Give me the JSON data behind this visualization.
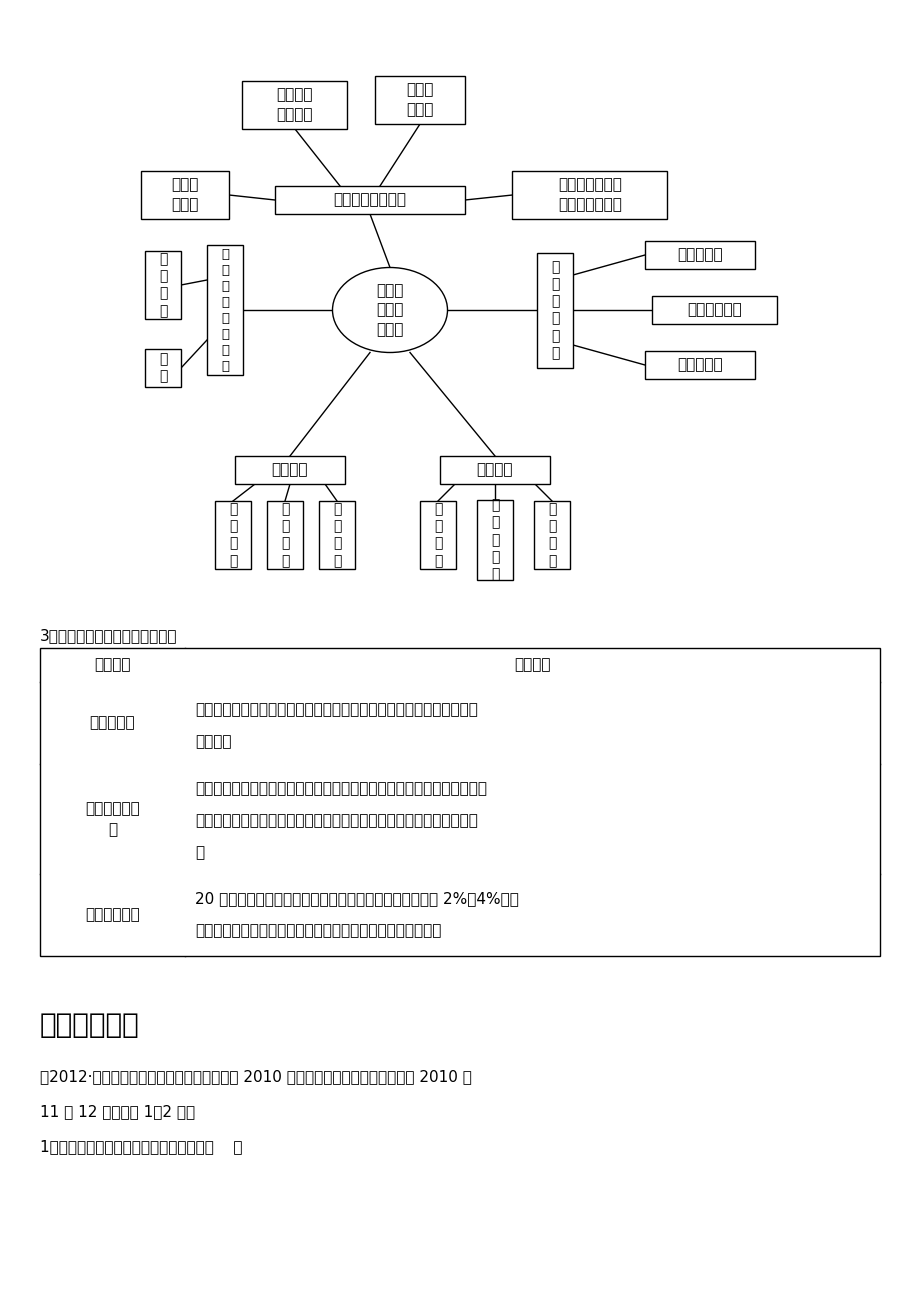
{
  "bg_color": "#ffffff",
  "text_color": "#000000",
  "section3_title": "3．全球气候变暖带来的深刻影响",
  "table_headers": [
    "影响内容",
    "具体表现"
  ],
  "table_row1_left": "海平面上升",
  "table_row1_right1": "改变海岸线，给沿海地区带来巨大影响，海拔较低的沿海地区面临被淹",
  "table_row1_right2": "没的危险",
  "table_row2_left": "资源条件的变\n化",
  "table_row2_right1": "温度和降水的变化，意味着热量资源和水资源条件的变化，并改变了水、",
  "table_row2_right2": "热资源的空间分布格局，在许多地区增加了人类开发利用自然资源的难",
  "table_row2_right3": "度",
  "table_row3_left": "自然灾害加剧",
  "table_row3_right1": "20 世纪后半叶，北半球中高纬地区的暴雨发生频率增加了 2%～4%，而",
  "table_row3_right2": "亚洲和非洲的一些地区，最近数十年干旱频率增加、强度增强",
  "section4_title": "四、堂内练习",
  "section4_text1": "（2012·安徽示范校联考）第十六届亚运会于 2010 年在中国广州举行，开幕时间为 2010 年",
  "section4_text2": "11 月 12 日。回答 1～2 题。",
  "section4_text3": "1．读下图，其中符合广州气候特点的是（    ）"
}
